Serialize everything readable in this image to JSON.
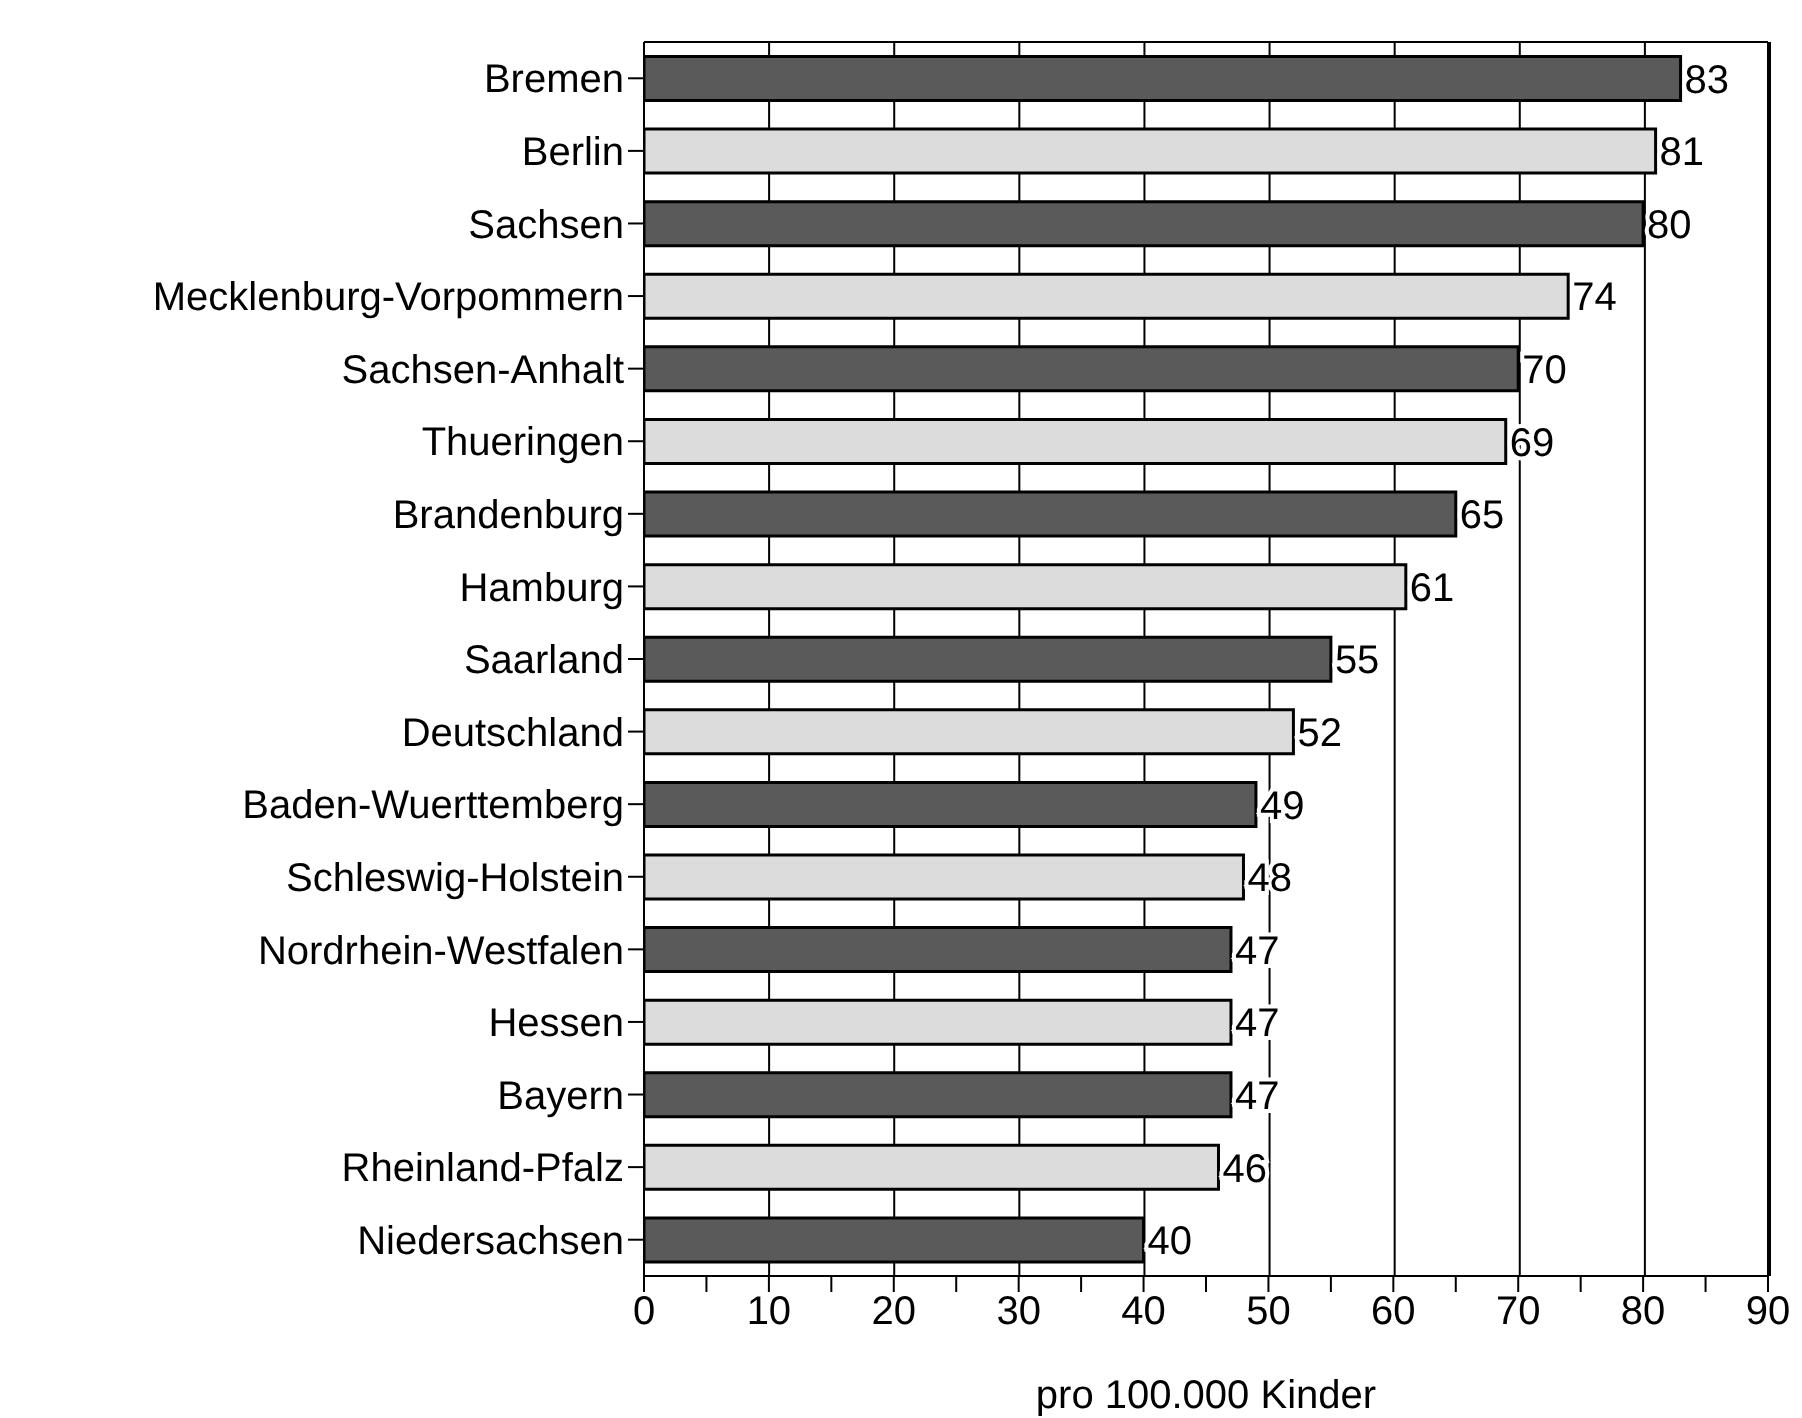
{
  "chart_data": {
    "type": "bar",
    "orientation": "horizontal",
    "xlabel": "pro 100.000 Kinder",
    "categories": [
      "Bremen",
      "Berlin",
      "Sachsen",
      "Mecklenburg-Vorpommern",
      "Sachsen-Anhalt",
      "Thueringen",
      "Brandenburg",
      "Hamburg",
      "Saarland",
      "Deutschland",
      "Baden-Wuerttemberg",
      "Schleswig-Holstein",
      "Nordrhein-Westfalen",
      "Hessen",
      "Bayern",
      "Rheinland-Pfalz",
      "Niedersachsen"
    ],
    "values": [
      83,
      81,
      80,
      74,
      70,
      69,
      65,
      61,
      55,
      52,
      49,
      48,
      47,
      47,
      47,
      46,
      40
    ],
    "colors": [
      "#5a5a5a",
      "#dcdcdc",
      "#5a5a5a",
      "#dcdcdc",
      "#5a5a5a",
      "#dcdcdc",
      "#5a5a5a",
      "#dcdcdc",
      "#5a5a5a",
      "#dcdcdc",
      "#5a5a5a",
      "#dcdcdc",
      "#5a5a5a",
      "#dcdcdc",
      "#5a5a5a",
      "#dcdcdc",
      "#5a5a5a"
    ],
    "xlim": [
      0,
      90
    ],
    "xticks": [
      0,
      {
        "value": 5,
        "label": null
      },
      10,
      {
        "value": 15,
        "label": null
      },
      20,
      {
        "value": 25,
        "label": null
      },
      30,
      {
        "value": 35,
        "label": null
      },
      40,
      {
        "value": 45,
        "label": null
      },
      50,
      {
        "value": 55,
        "label": null
      },
      60,
      {
        "value": 65,
        "label": null
      },
      70,
      {
        "value": 75,
        "label": null
      },
      80,
      {
        "value": 85,
        "label": null
      },
      90
    ],
    "grid": "x",
    "data_labels": true
  }
}
